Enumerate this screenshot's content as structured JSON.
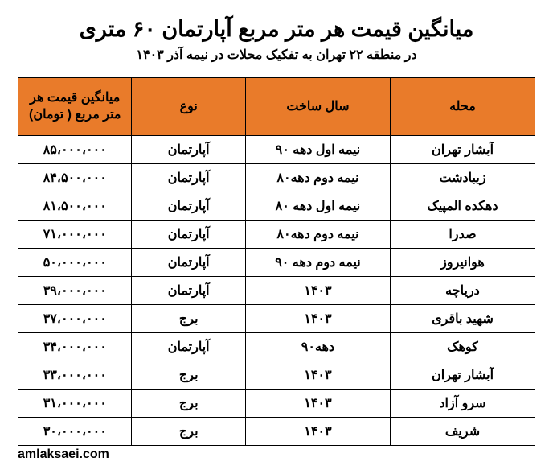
{
  "header": {
    "title_main": "میانگین قیمت هر متر مربع آپارتمان ۶۰ متری",
    "title_sub": "در منطقه ۲۲ تهران به تفکیک محلات در نیمه آذر ۱۴۰۳"
  },
  "table": {
    "columns": {
      "price": "میانگین قیمت هر متر مربع ( تومان)",
      "type": "نوع",
      "year": "سال ساخت",
      "area": "محله"
    },
    "rows": [
      {
        "area": "آبشار تهران",
        "year": "نیمه اول دهه ۹۰",
        "type": "آپارتمان",
        "price": "۸۵،۰۰۰،۰۰۰"
      },
      {
        "area": "زیبادشت",
        "year": "نیمه دوم دهه۸۰",
        "type": "آپارتمان",
        "price": "۸۴،۵۰۰،۰۰۰"
      },
      {
        "area": "دهکده المپیک",
        "year": "نیمه اول دهه ۸۰",
        "type": "آپارتمان",
        "price": "۸۱،۵۰۰،۰۰۰"
      },
      {
        "area": "صدرا",
        "year": "نیمه دوم دهه۸۰",
        "type": "آپارتمان",
        "price": "۷۱،۰۰۰،۰۰۰"
      },
      {
        "area": "هوانیروز",
        "year": "نیمه دوم دهه ۹۰",
        "type": "آپارتمان",
        "price": "۵۰،۰۰۰،۰۰۰"
      },
      {
        "area": "دریاچه",
        "year": "۱۴۰۳",
        "type": "آپارتمان",
        "price": "۳۹،۰۰۰،۰۰۰"
      },
      {
        "area": "شهید باقری",
        "year": "۱۴۰۳",
        "type": "برج",
        "price": "۳۷،۰۰۰،۰۰۰"
      },
      {
        "area": "کوهک",
        "year": "دهه۹۰",
        "type": "آپارتمان",
        "price": "۳۴،۰۰۰،۰۰۰"
      },
      {
        "area": "آبشار تهران",
        "year": "۱۴۰۳",
        "type": "برج",
        "price": "۳۳،۰۰۰،۰۰۰"
      },
      {
        "area": "سرو آزاد",
        "year": "۱۴۰۳",
        "type": "برج",
        "price": "۳۱،۰۰۰،۰۰۰"
      },
      {
        "area": "شریف",
        "year": "۱۴۰۳",
        "type": "برج",
        "price": "۳۰،۰۰۰،۰۰۰"
      }
    ]
  },
  "footer": {
    "url": "amlaksaei.com"
  },
  "styling": {
    "header_bg": "#e97b2a",
    "border_color": "#000000",
    "text_color": "#000000",
    "title_fontsize": 27,
    "subtitle_fontsize": 16,
    "cell_fontsize": 16,
    "header_fontsize": 16
  }
}
